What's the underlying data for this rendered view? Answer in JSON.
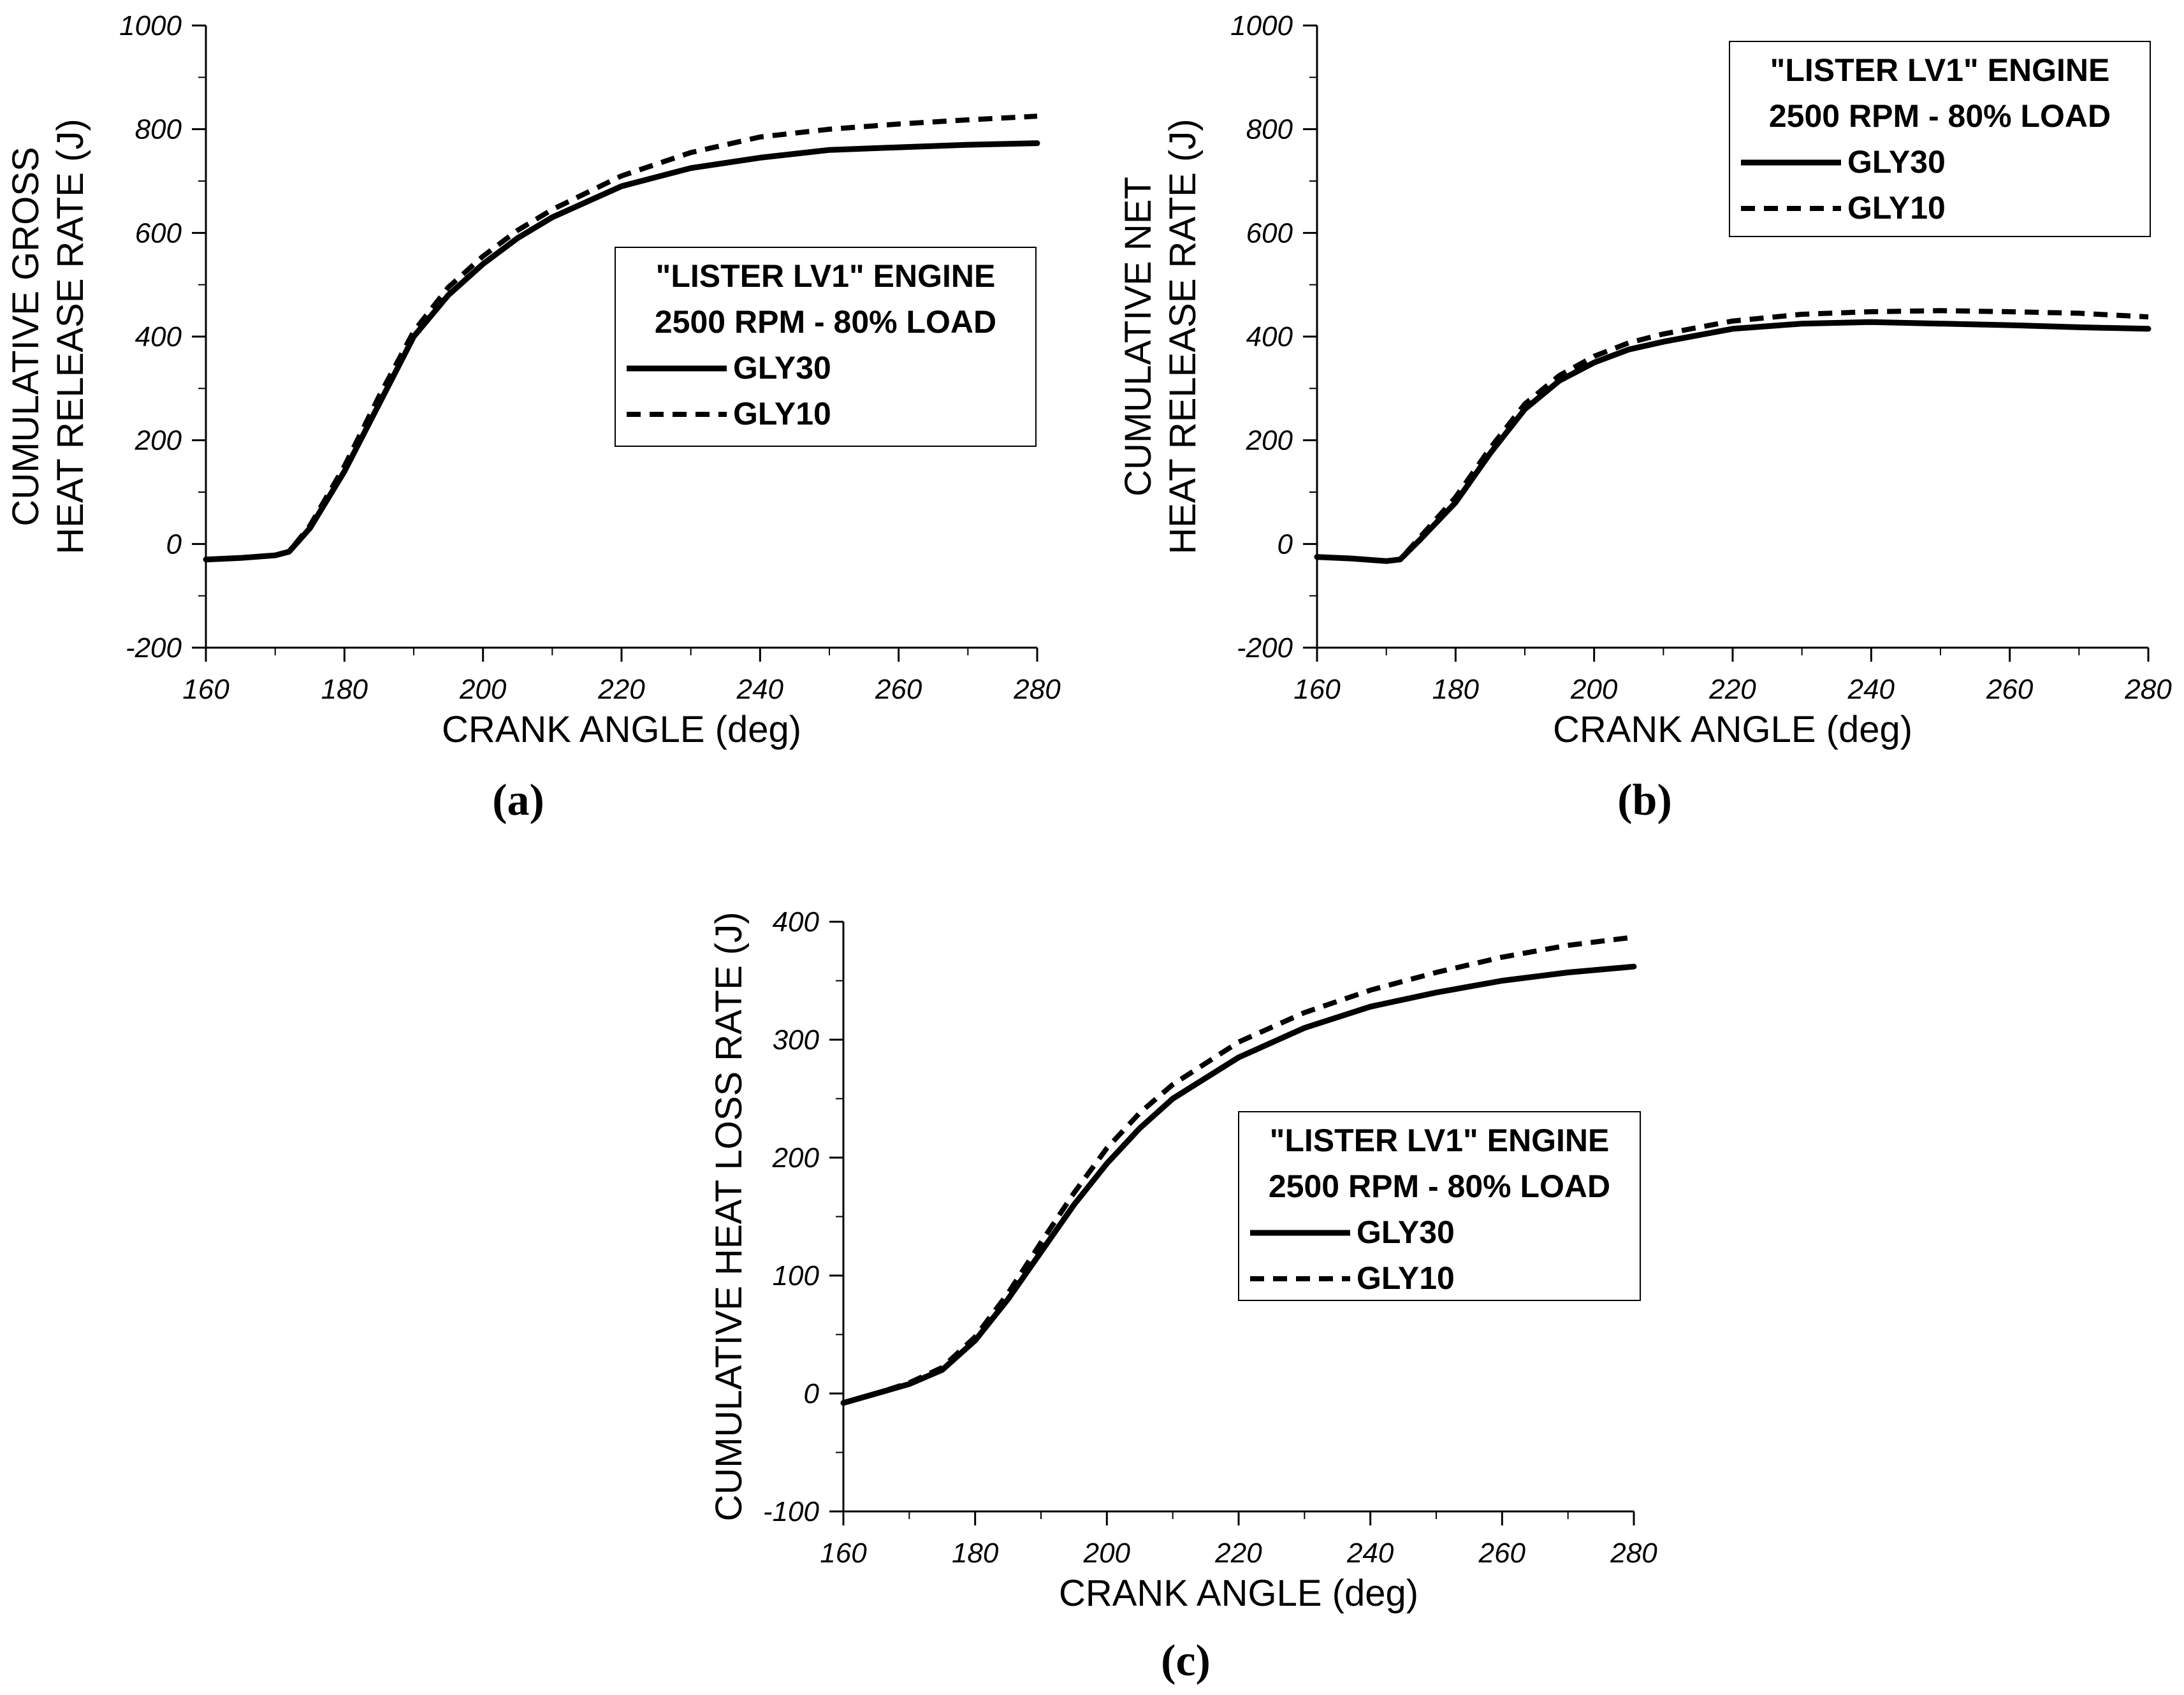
{
  "chart_data": [
    {
      "type": "line",
      "panel_label": "(a)",
      "xlabel": "CRANK ANGLE (deg)",
      "ylabel_lines": [
        "CUMULATIVE GROSS",
        "HEAT RELEASE RATE (J)"
      ],
      "xlim": [
        160,
        280
      ],
      "ylim": [
        -200,
        1000
      ],
      "x_ticks": [
        160,
        180,
        200,
        220,
        240,
        260,
        280
      ],
      "y_ticks": [
        -200,
        0,
        200,
        400,
        600,
        800,
        1000
      ],
      "legend": {
        "title_lines": [
          "\"LISTER LV1\" ENGINE",
          "2500 RPM - 80% LOAD"
        ],
        "placement": "center-right"
      },
      "series": [
        {
          "name": "GLY30",
          "style": "solid",
          "x": [
            160,
            165,
            170,
            172,
            175,
            180,
            185,
            190,
            195,
            200,
            205,
            210,
            220,
            230,
            240,
            250,
            260,
            270,
            280
          ],
          "values": [
            -30,
            -27,
            -22,
            -15,
            30,
            140,
            270,
            400,
            480,
            540,
            590,
            630,
            690,
            725,
            745,
            760,
            765,
            770,
            773
          ]
        },
        {
          "name": "GLY10",
          "style": "dashed",
          "x": [
            160,
            165,
            170,
            172,
            175,
            180,
            185,
            190,
            195,
            200,
            205,
            210,
            220,
            230,
            240,
            250,
            260,
            270,
            280
          ],
          "values": [
            -30,
            -27,
            -22,
            -15,
            35,
            150,
            285,
            410,
            495,
            555,
            605,
            645,
            710,
            755,
            785,
            800,
            810,
            818,
            825
          ]
        }
      ]
    },
    {
      "type": "line",
      "panel_label": "(b)",
      "xlabel": "CRANK ANGLE (deg)",
      "ylabel_lines": [
        "CUMULATIVE NET",
        "HEAT RELEASE RATE (J)"
      ],
      "xlim": [
        160,
        280
      ],
      "ylim": [
        -200,
        1000
      ],
      "x_ticks": [
        160,
        180,
        200,
        220,
        240,
        260,
        280
      ],
      "y_ticks": [
        -200,
        0,
        200,
        400,
        600,
        800,
        1000
      ],
      "legend": {
        "title_lines": [
          "\"LISTER LV1\" ENGINE",
          "2500 RPM - 80% LOAD"
        ],
        "placement": "top-right"
      },
      "series": [
        {
          "name": "GLY30",
          "style": "solid",
          "x": [
            160,
            165,
            170,
            172,
            175,
            180,
            185,
            190,
            195,
            200,
            205,
            210,
            220,
            230,
            240,
            250,
            260,
            270,
            280
          ],
          "values": [
            -25,
            -28,
            -33,
            -30,
            10,
            80,
            175,
            260,
            315,
            350,
            375,
            390,
            415,
            425,
            428,
            425,
            422,
            418,
            415
          ]
        },
        {
          "name": "GLY10",
          "style": "dashed",
          "x": [
            160,
            165,
            170,
            172,
            175,
            180,
            185,
            190,
            195,
            200,
            205,
            210,
            220,
            230,
            240,
            250,
            260,
            270,
            280
          ],
          "values": [
            -25,
            -28,
            -33,
            -30,
            15,
            90,
            185,
            270,
            325,
            362,
            388,
            405,
            430,
            443,
            448,
            450,
            448,
            445,
            438
          ]
        }
      ]
    },
    {
      "type": "line",
      "panel_label": "(c)",
      "xlabel": "CRANK ANGLE (deg)",
      "ylabel_lines": [
        "CUMULATIVE HEAT LOSS RATE (J)"
      ],
      "xlim": [
        160,
        280
      ],
      "ylim": [
        -100,
        400
      ],
      "x_ticks": [
        160,
        180,
        200,
        220,
        240,
        260,
        280
      ],
      "y_ticks": [
        -100,
        0,
        100,
        200,
        300,
        400
      ],
      "legend": {
        "title_lines": [
          "\"LISTER LV1\" ENGINE",
          "2500 RPM - 80% LOAD"
        ],
        "placement": "center-right"
      },
      "series": [
        {
          "name": "GLY30",
          "style": "solid",
          "x": [
            160,
            165,
            170,
            175,
            180,
            185,
            190,
            195,
            200,
            205,
            210,
            220,
            230,
            240,
            250,
            260,
            270,
            280
          ],
          "values": [
            -8,
            0,
            8,
            20,
            45,
            80,
            120,
            160,
            195,
            225,
            250,
            285,
            310,
            328,
            340,
            350,
            357,
            362
          ]
        },
        {
          "name": "GLY10",
          "style": "dashed",
          "x": [
            160,
            165,
            170,
            175,
            180,
            185,
            190,
            195,
            200,
            205,
            210,
            220,
            230,
            240,
            250,
            260,
            270,
            280
          ],
          "values": [
            -8,
            0,
            9,
            22,
            48,
            85,
            128,
            170,
            208,
            238,
            262,
            298,
            323,
            342,
            357,
            370,
            380,
            387
          ]
        }
      ]
    }
  ]
}
